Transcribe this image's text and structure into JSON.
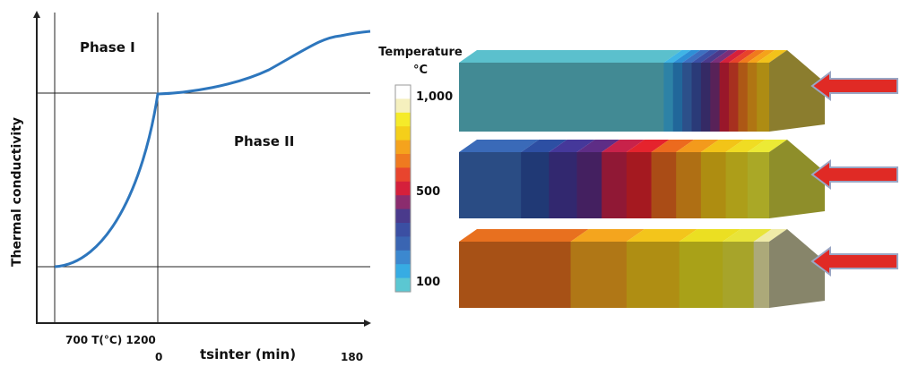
{
  "curve_plot": {
    "y_axis_label": "Thermal conductivity",
    "phase_1_label": "Phase I",
    "phase_2_label": "Phase II",
    "x_label_row1": "700 T(°C) 1200",
    "x_label_zero": "0",
    "x_label_sinter": "tsinter (min)",
    "x_label_end": "180"
  },
  "temperature_legend": {
    "title_line1": "Temperature",
    "title_line2": "°C",
    "ticks": [
      "1,000",
      "500",
      "100"
    ]
  },
  "blocks": [
    {
      "name": "top-block",
      "segments": [
        {
          "share": 0.66,
          "color": "#5BC0CD"
        },
        {
          "share": 0.03,
          "color": "#3FB4E6"
        },
        {
          "share": 0.03,
          "color": "#2E8FD6"
        },
        {
          "share": 0.03,
          "color": "#3D6FC0"
        },
        {
          "share": 0.03,
          "color": "#3B50A6"
        },
        {
          "share": 0.03,
          "color": "#4A3A8C"
        },
        {
          "share": 0.03,
          "color": "#7A2F7A"
        },
        {
          "share": 0.03,
          "color": "#D5203B"
        },
        {
          "share": 0.03,
          "color": "#E8422B"
        },
        {
          "share": 0.03,
          "color": "#F07A1D"
        },
        {
          "share": 0.03,
          "color": "#F5A31A"
        },
        {
          "share": 0.04,
          "color": "#F2C21A"
        }
      ],
      "end_face_color": "#8B7D2E"
    },
    {
      "name": "middle-block",
      "segments": [
        {
          "share": 0.2,
          "color": "#3A6AB8"
        },
        {
          "share": 0.09,
          "color": "#2D4FA3"
        },
        {
          "share": 0.09,
          "color": "#45389A"
        },
        {
          "share": 0.08,
          "color": "#5E2D86"
        },
        {
          "share": 0.08,
          "color": "#C8224A"
        },
        {
          "share": 0.08,
          "color": "#E5232D"
        },
        {
          "share": 0.08,
          "color": "#EC6A1E"
        },
        {
          "share": 0.08,
          "color": "#F39A1C"
        },
        {
          "share": 0.08,
          "color": "#F2C418"
        },
        {
          "share": 0.07,
          "color": "#F0DC23"
        },
        {
          "share": 0.07,
          "color": "#ECEA35"
        }
      ],
      "end_face_color": "#8E8E2A"
    },
    {
      "name": "bottom-block",
      "segments": [
        {
          "share": 0.36,
          "color": "#E8701F"
        },
        {
          "share": 0.18,
          "color": "#F4A51E"
        },
        {
          "share": 0.17,
          "color": "#F3C51B"
        },
        {
          "share": 0.14,
          "color": "#EBDF22"
        },
        {
          "share": 0.1,
          "color": "#E8E43A"
        },
        {
          "share": 0.05,
          "color": "#EFEBA8"
        }
      ],
      "end_face_color": "#87856A"
    }
  ],
  "colors": {
    "curve": "#2D76BD",
    "axis": "#222222",
    "arrow_fill": "#E02A25",
    "arrow_stroke": "#9AA6C4",
    "legend_bar": [
      "#FFFFFF",
      "#F5F0BE",
      "#F5EB2A",
      "#F4CF1A",
      "#F5A31D",
      "#EF7A20",
      "#E8452E",
      "#D5203B",
      "#8B2C6E",
      "#4A3A8C",
      "#3B4FA3",
      "#3A65B2",
      "#3C88CF",
      "#37ACE3",
      "#5BC7D2"
    ]
  }
}
